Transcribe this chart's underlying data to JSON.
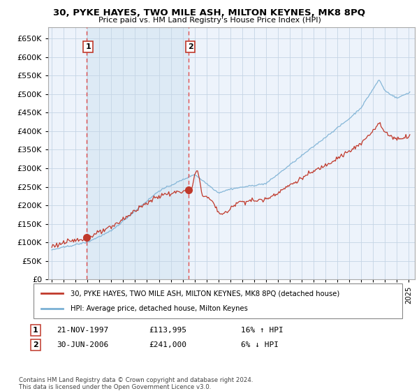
{
  "title": "30, PYKE HAYES, TWO MILE ASH, MILTON KEYNES, MK8 8PQ",
  "subtitle": "Price paid vs. HM Land Registry's House Price Index (HPI)",
  "legend_line1": "30, PYKE HAYES, TWO MILE ASH, MILTON KEYNES, MK8 8PQ (detached house)",
  "legend_line2": "HPI: Average price, detached house, Milton Keynes",
  "transaction1_label": "1",
  "transaction1_date": "21-NOV-1997",
  "transaction1_price": "£113,995",
  "transaction1_hpi": "16% ↑ HPI",
  "transaction2_label": "2",
  "transaction2_date": "30-JUN-2006",
  "transaction2_price": "£241,000",
  "transaction2_hpi": "6% ↓ HPI",
  "footer": "Contains HM Land Registry data © Crown copyright and database right 2024.\nThis data is licensed under the Open Government Licence v3.0.",
  "hpi_color": "#7ab0d4",
  "price_color": "#c0392b",
  "vline_color": "#e05050",
  "dot_color": "#c0392b",
  "background_color": "#dce9f5",
  "grid_color": "#c8d8e8",
  "shade_color": "#dce9f5",
  "ylim": [
    0,
    680000
  ],
  "yticks": [
    0,
    50000,
    100000,
    150000,
    200000,
    250000,
    300000,
    350000,
    400000,
    450000,
    500000,
    550000,
    600000,
    650000
  ],
  "xlim_start": 1994.7,
  "xlim_end": 2025.5,
  "transaction1_x": 1997.9,
  "transaction1_y": 113995,
  "transaction2_x": 2006.5,
  "transaction2_y": 241000
}
